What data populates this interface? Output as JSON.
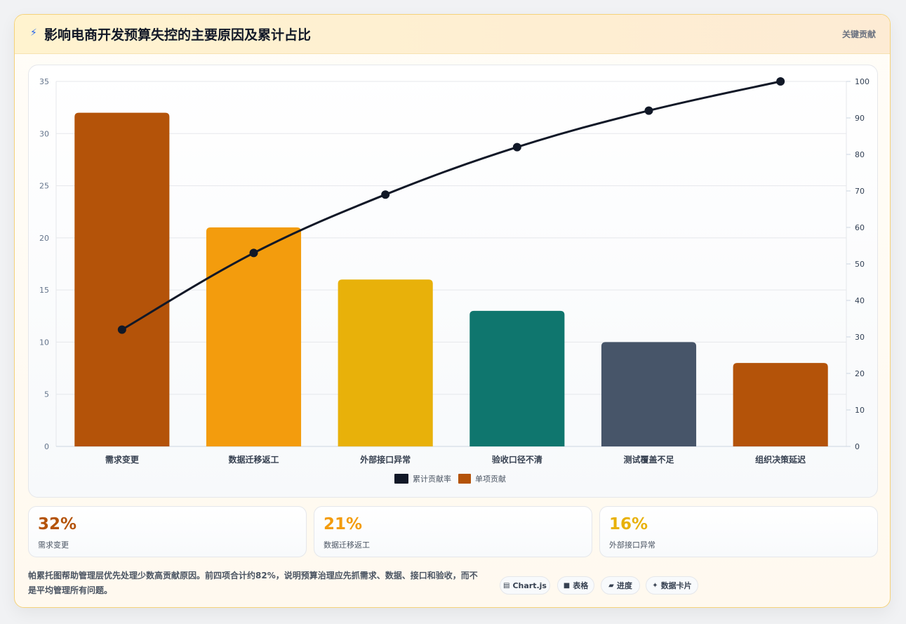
{
  "header": {
    "icon": "lightning-icon",
    "title": "影响电商开发预算失控的主要原因及累计占比",
    "tag": "关键贡献"
  },
  "chart_data": {
    "type": "bar",
    "categories": [
      "需求变更",
      "数据迁移返工",
      "外部接口异常",
      "验收口径不清",
      "测试覆盖不足",
      "组织决策延迟"
    ],
    "series": [
      {
        "name": "单项贡献",
        "type": "bar",
        "axis": "left",
        "values": [
          32,
          21,
          16,
          13,
          10,
          8
        ],
        "colors": [
          "#b45309",
          "#f39c0d",
          "#e8b10a",
          "#0f766e",
          "#475569",
          "#b45309"
        ]
      },
      {
        "name": "累计贡献率",
        "type": "line",
        "axis": "right",
        "values": [
          32,
          53,
          69,
          82,
          92,
          100
        ],
        "color": "#111827"
      }
    ],
    "y_left": {
      "min": 0,
      "max": 35,
      "ticks": [
        "0",
        "5",
        "10",
        "15",
        "20",
        "25",
        "30",
        "35"
      ]
    },
    "y_right": {
      "min": 0,
      "max": 100,
      "ticks": [
        "0",
        "10",
        "20",
        "30",
        "40",
        "50",
        "60",
        "70",
        "80",
        "90",
        "100"
      ]
    },
    "legend": {
      "position": "bottom",
      "items": [
        "累计贡献率",
        "单项贡献"
      ]
    },
    "grid": true
  },
  "stats": [
    {
      "value": "32%",
      "label": "需求变更",
      "color": "#b45309"
    },
    {
      "value": "21%",
      "label": "数据迁移返工",
      "color": "#f39c0d"
    },
    {
      "value": "16%",
      "label": "外部接口异常",
      "color": "#e8b10a"
    }
  ],
  "summary": "帕累托图帮助管理层优先处理少数高贡献原因。前四项合计约82%，说明预算治理应先抓需求、数据、接口和验收，而不是平均管理所有问题。",
  "chips": [
    {
      "icon": "calendar-icon",
      "glyph": "▤",
      "label": "Chart.js"
    },
    {
      "icon": "table-icon",
      "glyph": "■",
      "label": "表格"
    },
    {
      "icon": "progress-icon",
      "glyph": "▰",
      "label": "进度"
    },
    {
      "icon": "sparkle-icon",
      "glyph": "✦",
      "label": "数据卡片"
    }
  ]
}
